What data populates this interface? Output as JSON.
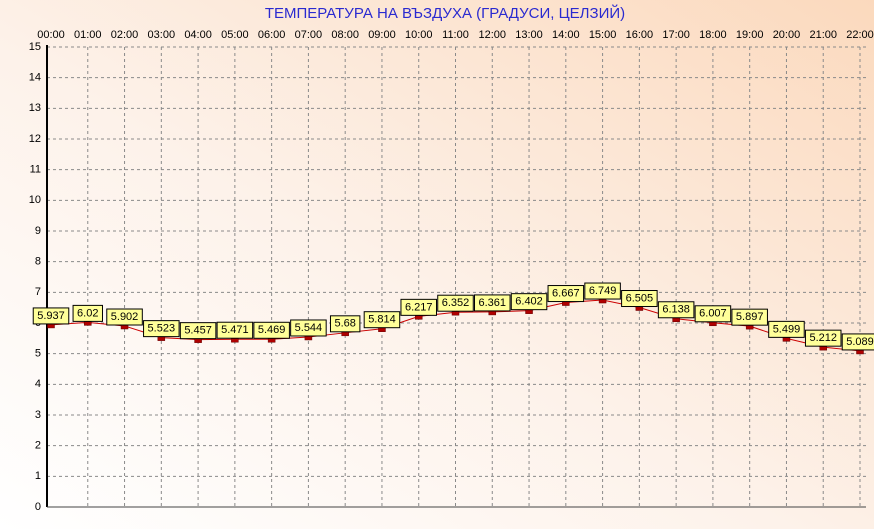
{
  "chart_data": {
    "type": "line",
    "title": "ТЕМПЕРАТУРА НА ВЪЗДУХА  (ГРАДУСИ, ЦЕЛЗИЙ)",
    "categories": [
      "00:00",
      "01:00",
      "02:00",
      "03:00",
      "04:00",
      "05:00",
      "06:00",
      "07:00",
      "08:00",
      "09:00",
      "10:00",
      "11:00",
      "12:00",
      "13:00",
      "14:00",
      "15:00",
      "16:00",
      "17:00",
      "18:00",
      "19:00",
      "20:00",
      "21:00",
      "22:00"
    ],
    "values": [
      5.937,
      6.02,
      5.902,
      5.523,
      5.457,
      5.471,
      5.469,
      5.544,
      5.68,
      5.814,
      6.217,
      6.352,
      6.361,
      6.402,
      6.667,
      6.749,
      6.505,
      6.138,
      6.007,
      5.897,
      5.499,
      5.212,
      5.089
    ],
    "color": "#cc0000",
    "ylim": [
      0,
      15
    ],
    "yticks": [
      0,
      1,
      2,
      3,
      4,
      5,
      6,
      7,
      8,
      9,
      10,
      11,
      12,
      13,
      14,
      15
    ],
    "grid": true
  }
}
